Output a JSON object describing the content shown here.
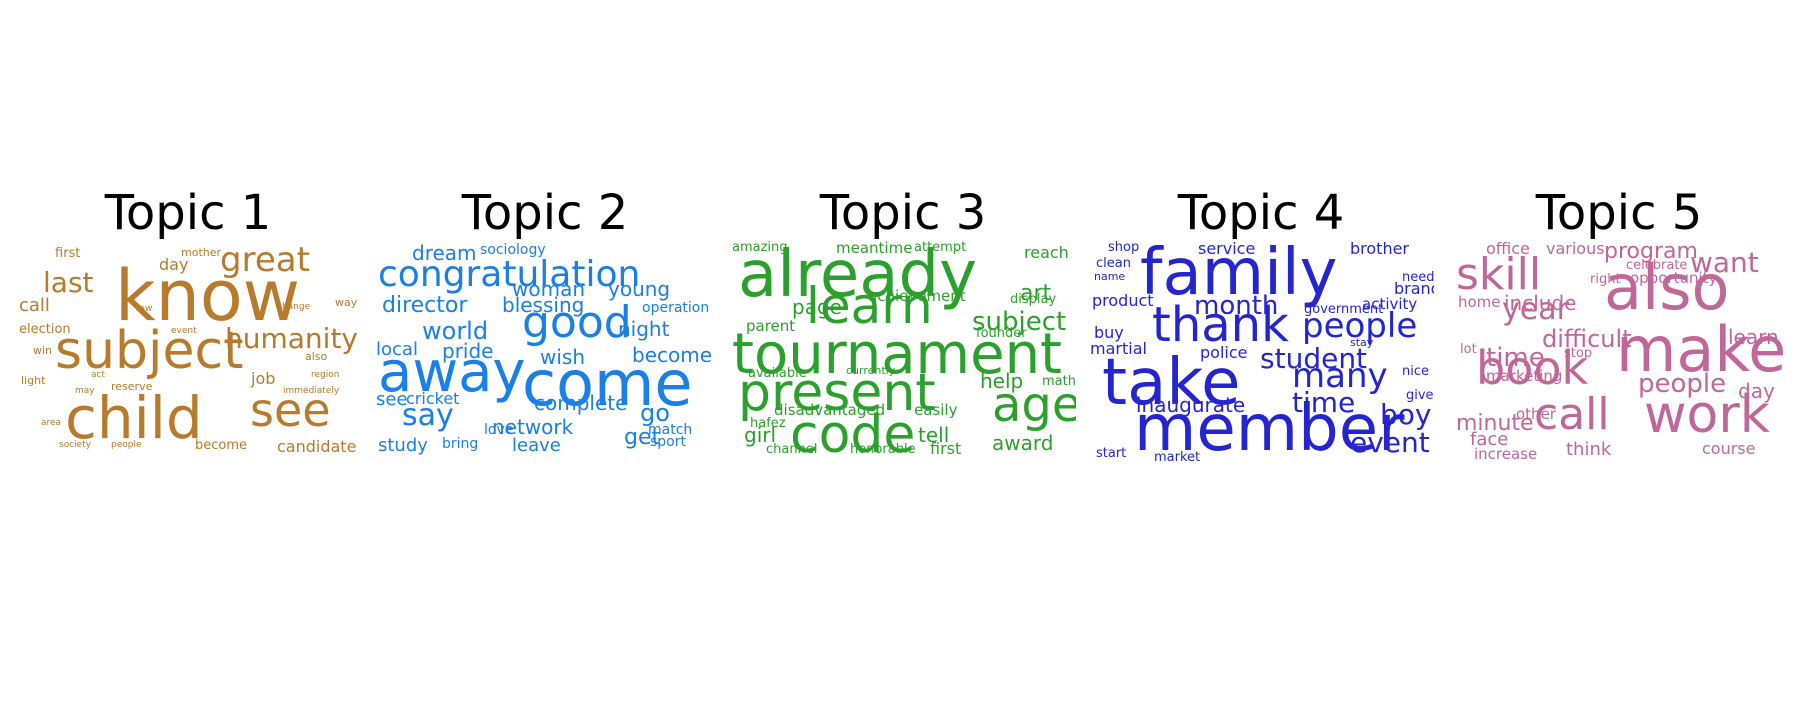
{
  "chart_data": [
    {
      "type": "wordcloud",
      "title": "Topic 1",
      "color": "#b87a2b",
      "words": [
        "know",
        "subject",
        "child",
        "see",
        "great",
        "last",
        "humanity",
        "call",
        "day",
        "first",
        "mother",
        "election",
        "win",
        "law",
        "event",
        "change",
        "way",
        "also",
        "region",
        "light",
        "act",
        "may",
        "reserve",
        "job",
        "immediately",
        "area",
        "society",
        "people",
        "become",
        "candidate"
      ],
      "weights": [
        70,
        52,
        58,
        46,
        34,
        28,
        28,
        18,
        16,
        13,
        11,
        13,
        11,
        9,
        9,
        9,
        11,
        11,
        9,
        11,
        9,
        9,
        11,
        16,
        9,
        9,
        9,
        9,
        13,
        16
      ]
    },
    {
      "type": "wordcloud",
      "title": "Topic 2",
      "color": "#1a7fe6",
      "words": [
        "come",
        "away",
        "congratulation",
        "good",
        "director",
        "blessing",
        "woman",
        "young",
        "dream",
        "sociology",
        "operation",
        "night",
        "world",
        "local",
        "pride",
        "wish",
        "become",
        "say",
        "see",
        "cricket",
        "complete",
        "go",
        "match",
        "network",
        "get",
        "sport",
        "love",
        "study",
        "bring",
        "leave"
      ],
      "weights": [
        62,
        56,
        36,
        44,
        22,
        20,
        20,
        20,
        20,
        14,
        14,
        20,
        24,
        18,
        20,
        20,
        20,
        30,
        18,
        16,
        20,
        24,
        14,
        20,
        22,
        14,
        14,
        18,
        14,
        18
      ]
    },
    {
      "type": "wordcloud",
      "title": "Topic 3",
      "color": "#2ca02c",
      "words": [
        "already",
        "learn",
        "tournament",
        "present",
        "code",
        "age",
        "subject",
        "art",
        "amazing",
        "meantime",
        "attempt",
        "reach",
        "page",
        "achievement",
        "display",
        "parent",
        "founder",
        "available",
        "currently",
        "help",
        "math",
        "disadvantaged",
        "easily",
        "hafez",
        "girl",
        "tell",
        "award",
        "channel",
        "honorable",
        "first"
      ],
      "weights": [
        64,
        50,
        56,
        52,
        52,
        48,
        26,
        22,
        13,
        15,
        13,
        16,
        20,
        15,
        13,
        15,
        13,
        13,
        11,
        20,
        13,
        15,
        15,
        13,
        20,
        20,
        20,
        13,
        13,
        16
      ]
    },
    {
      "type": "wordcloud",
      "title": "Topic 4",
      "color": "#2525d0",
      "words": [
        "family",
        "take",
        "member",
        "thank",
        "people",
        "month",
        "student",
        "many",
        "time",
        "boy",
        "event",
        "shop",
        "clean",
        "name",
        "service",
        "brother",
        "need",
        "brand",
        "government",
        "activity",
        "product",
        "buy",
        "martial",
        "stay",
        "police",
        "inaugurate",
        "nice",
        "give",
        "start",
        "market"
      ],
      "weights": [
        64,
        64,
        64,
        48,
        34,
        26,
        28,
        34,
        28,
        28,
        28,
        13,
        13,
        11,
        16,
        16,
        13,
        16,
        13,
        15,
        16,
        16,
        16,
        11,
        16,
        20,
        13,
        13,
        13,
        13
      ]
    },
    {
      "type": "wordcloud",
      "title": "Topic 5",
      "color": "#c0679a",
      "words": [
        "also",
        "make",
        "skill",
        "book",
        "call",
        "work",
        "want",
        "year",
        "difficult",
        "program",
        "office",
        "various",
        "celebrate",
        "opportunity",
        "right",
        "home",
        "include",
        "learn",
        "lot",
        "stop",
        "marketing",
        "time",
        "people",
        "day",
        "minute",
        "other",
        "face",
        "increase",
        "think",
        "course"
      ],
      "weights": [
        62,
        62,
        44,
        46,
        44,
        52,
        28,
        30,
        24,
        22,
        16,
        16,
        13,
        15,
        13,
        15,
        20,
        20,
        13,
        13,
        15,
        26,
        26,
        20,
        22,
        15,
        18,
        15,
        18,
        16
      ]
    }
  ]
}
